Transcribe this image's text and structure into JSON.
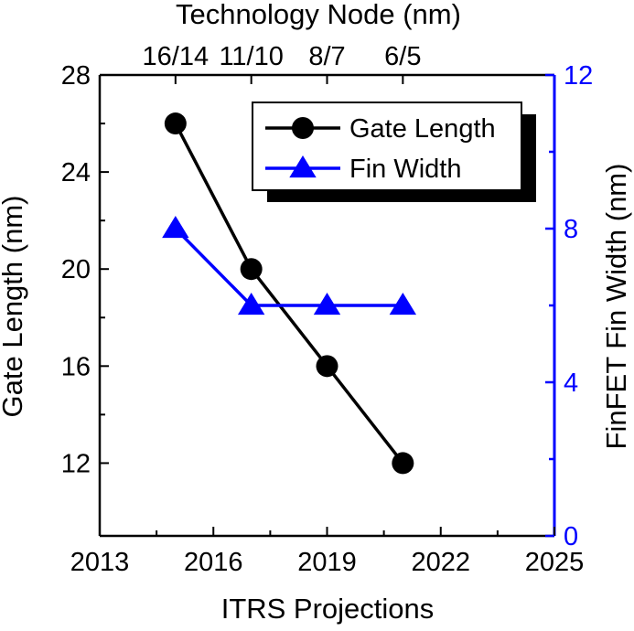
{
  "chart_data": {
    "type": "line",
    "top_title": "Technology Node (nm)",
    "xlabel": "ITRS Projections",
    "ylabel_left": "Gate Length (nm)",
    "ylabel_right": "FinFET Fin Width (nm)",
    "xlim": [
      2013,
      2025
    ],
    "x_ticks": [
      2013,
      2016,
      2019,
      2022,
      2025
    ],
    "ylim_left": [
      9,
      28
    ],
    "y_ticks_left": [
      12,
      16,
      20,
      24,
      28
    ],
    "ylim_right": [
      0,
      12
    ],
    "y_ticks_right": [
      0,
      4,
      8,
      12
    ],
    "top_ticks": [
      {
        "x": 2015,
        "label": "16/14"
      },
      {
        "x": 2017,
        "label": "11/10"
      },
      {
        "x": 2019,
        "label": "8/7"
      },
      {
        "x": 2021,
        "label": "6/5"
      }
    ],
    "series": [
      {
        "name": "Gate Length",
        "axis": "left",
        "color": "#000000",
        "marker": "circle",
        "x": [
          2015,
          2017,
          2019,
          2021
        ],
        "values": [
          26,
          20,
          16,
          12
        ]
      },
      {
        "name": "Fin Width",
        "axis": "right",
        "color": "#0000ff",
        "marker": "triangle",
        "x": [
          2015,
          2017,
          2019,
          2021
        ],
        "values": [
          8,
          6,
          6,
          6
        ]
      }
    ],
    "legend_position": "top-right",
    "grid": false,
    "right_axis_color": "#0000ff"
  }
}
